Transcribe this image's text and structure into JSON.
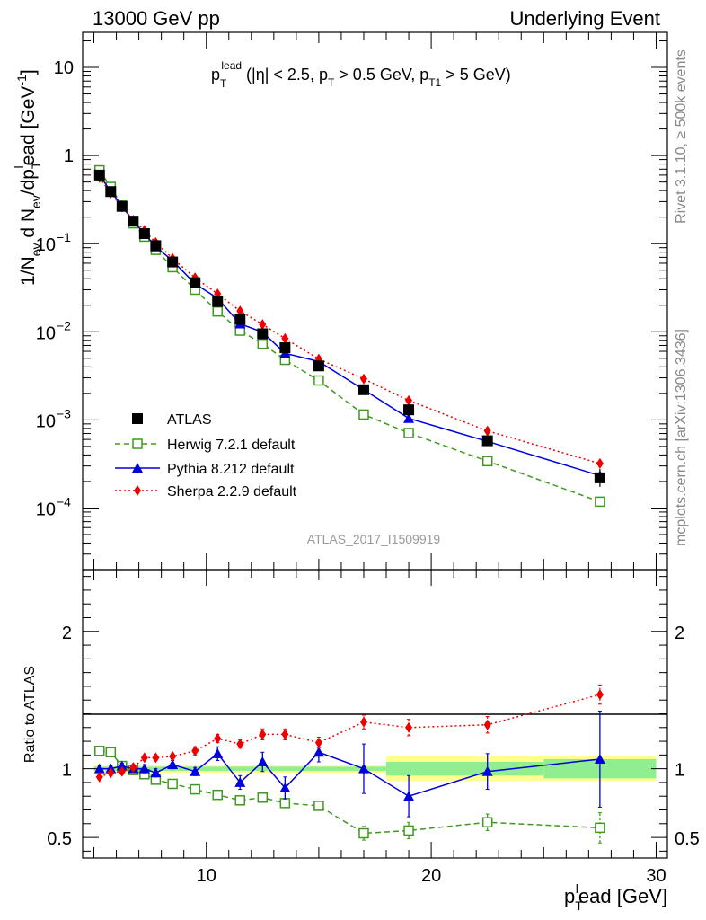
{
  "header": {
    "energy_label": "13000 GeV pp",
    "process_label": "Underlying Event"
  },
  "side_text": {
    "rivet": "Rivet 3.1.10, ≥ 500k events",
    "mcplots": "mcplots.cern.ch [arXiv:1306.3436]"
  },
  "chart_data": [
    {
      "type": "scatter",
      "panel": "main",
      "title_main": "p",
      "title_sub": "T",
      "title_sup": "lead",
      "title_rest_a": " (|η| < 2.5, p",
      "title_rest_b": " > 0.5 GeV, p",
      "title_rest_c": " > 5 GeV)",
      "title_sub2": "T",
      "title_sub3": "T1",
      "ylabel": "1/N_ev d N_ev/dp_T^lead [GeV^-1]",
      "ylabel_a": "1/N",
      "ylabel_sub_a": "ev",
      "ylabel_b": " d N",
      "ylabel_sub_b": "ev",
      "ylabel_c": "/dp",
      "ylabel_sub_c": "T",
      "ylabel_sup_c": "l",
      "ylabel_d": "ead [GeV",
      "ylabel_sup_d": "-1",
      "ylabel_e": "]",
      "yscale": "log",
      "ylim": [
        2e-05,
        25
      ],
      "xlim": [
        4.5,
        30.5
      ],
      "y_ticks": [
        {
          "value": 10,
          "label": "10"
        },
        {
          "value": 1,
          "label": "1"
        },
        {
          "value": 0.1,
          "base": "10",
          "exp": "−1"
        },
        {
          "value": 0.01,
          "base": "10",
          "exp": "−2"
        },
        {
          "value": 0.001,
          "base": "10",
          "exp": "−3"
        },
        {
          "value": 0.0001,
          "base": "10",
          "exp": "−4"
        }
      ],
      "watermark": "ATLAS_2017_I1509919",
      "legend_position": "bottom-left",
      "x": [
        5.25,
        5.75,
        6.25,
        6.75,
        7.25,
        7.75,
        8.5,
        9.5,
        10.5,
        11.5,
        12.5,
        13.5,
        15,
        17,
        19,
        22.5,
        27.5
      ],
      "series": [
        {
          "name": "ATLAS",
          "style": "data",
          "color": "#000000",
          "marker": "filled-square",
          "values": [
            0.6,
            0.39,
            0.265,
            0.18,
            0.13,
            0.095,
            0.062,
            0.036,
            0.022,
            0.0138,
            0.0095,
            0.0066,
            0.0041,
            0.0022,
            0.0013,
            0.00058,
            0.00022
          ]
        },
        {
          "name": "Herwig 7.2.1 default",
          "style": "dashed",
          "color": "#3d9a1e",
          "marker": "open-square",
          "values": [
            0.68,
            0.44,
            0.27,
            0.17,
            0.12,
            0.085,
            0.054,
            0.03,
            0.017,
            0.0103,
            0.0073,
            0.0048,
            0.0028,
            0.00115,
            0.00071,
            0.00034,
            0.000118
          ]
        },
        {
          "name": "Pythia 8.212 default",
          "style": "solid",
          "color": "#0000dd",
          "marker": "filled-triangle",
          "values": [
            0.6,
            0.39,
            0.27,
            0.18,
            0.13,
            0.092,
            0.064,
            0.035,
            0.024,
            0.0123,
            0.0099,
            0.0057,
            0.0046,
            0.0022,
            0.00104,
            0.00057,
            0.000233
          ]
        },
        {
          "name": "Sherpa 2.2.9 default",
          "style": "dotted",
          "color": "#ee0000",
          "marker": "filled-diamond",
          "values": [
            0.56,
            0.375,
            0.26,
            0.185,
            0.142,
            0.103,
            0.068,
            0.041,
            0.027,
            0.0172,
            0.0121,
            0.0084,
            0.0049,
            0.00292,
            0.00166,
            0.00075,
            0.00032
          ]
        }
      ]
    },
    {
      "type": "scatter",
      "panel": "ratio",
      "ylabel": "Ratio to ATLAS",
      "xlabel_main": "p",
      "xlabel_sub": "T",
      "xlabel_sup": "l",
      "xlabel_rest": "ead [GeV]",
      "ylim": [
        0.35,
        2.45
      ],
      "xlim": [
        4.5,
        30.5
      ],
      "y_ticks": [
        {
          "value": 0.5,
          "label": "0.5"
        },
        {
          "value": 1,
          "label": "1"
        },
        {
          "value": 2,
          "label": "2"
        }
      ],
      "x_ticks": [
        {
          "value": 10,
          "label": "10"
        },
        {
          "value": 20,
          "label": "20"
        },
        {
          "value": 30,
          "label": "30"
        }
      ],
      "x": [
        5.25,
        5.75,
        6.25,
        6.75,
        7.25,
        7.75,
        8.5,
        9.5,
        10.5,
        11.5,
        12.5,
        13.5,
        15,
        17,
        19,
        22.5,
        27.5
      ],
      "bands": [
        {
          "x_from": 5.0,
          "x_to": 18.0,
          "inner": 0.015,
          "outer": 0.03
        },
        {
          "x_from": 18.0,
          "x_to": 25.0,
          "inner": 0.05,
          "outer": 0.09
        },
        {
          "x_from": 25.0,
          "x_to": 30.0,
          "inner": 0.07,
          "outer": 0.09
        }
      ],
      "band_colors": {
        "inner": "#90ee90",
        "outer": "#ffff90"
      },
      "series": [
        {
          "name": "Herwig 7.2.1 default",
          "style": "dashed",
          "color": "#3d9a1e",
          "marker": "open-square",
          "values": [
            1.13,
            1.12,
            1.02,
            0.99,
            0.96,
            0.92,
            0.89,
            0.85,
            0.81,
            0.77,
            0.79,
            0.75,
            0.73,
            0.53,
            0.55,
            0.61,
            0.57
          ],
          "errors": [
            0.02,
            0.02,
            0.02,
            0.02,
            0.02,
            0.02,
            0.02,
            0.02,
            0.02,
            0.02,
            0.03,
            0.03,
            0.03,
            0.05,
            0.06,
            0.06,
            0.11
          ]
        },
        {
          "name": "Pythia 8.212 default",
          "style": "solid",
          "color": "#0000dd",
          "marker": "filled-triangle",
          "values": [
            1.0,
            1.0,
            1.02,
            1.0,
            1.0,
            0.97,
            1.03,
            0.98,
            1.11,
            0.9,
            1.05,
            0.86,
            1.12,
            1.0,
            0.8,
            0.98,
            1.07
          ],
          "errors": [
            0.02,
            0.02,
            0.02,
            0.02,
            0.03,
            0.03,
            0.03,
            0.03,
            0.05,
            0.05,
            0.07,
            0.08,
            0.07,
            0.18,
            0.15,
            0.13,
            0.35
          ]
        },
        {
          "name": "Sherpa 2.2.9 default",
          "style": "dotted",
          "color": "#ee0000",
          "marker": "filled-diamond",
          "values": [
            0.94,
            0.97,
            0.98,
            1.01,
            1.08,
            1.08,
            1.09,
            1.13,
            1.22,
            1.18,
            1.25,
            1.25,
            1.19,
            1.34,
            1.3,
            1.32,
            1.54
          ],
          "errors": [
            0.02,
            0.02,
            0.02,
            0.02,
            0.02,
            0.02,
            0.02,
            0.03,
            0.03,
            0.03,
            0.04,
            0.04,
            0.04,
            0.05,
            0.06,
            0.06,
            0.07
          ]
        }
      ]
    }
  ]
}
